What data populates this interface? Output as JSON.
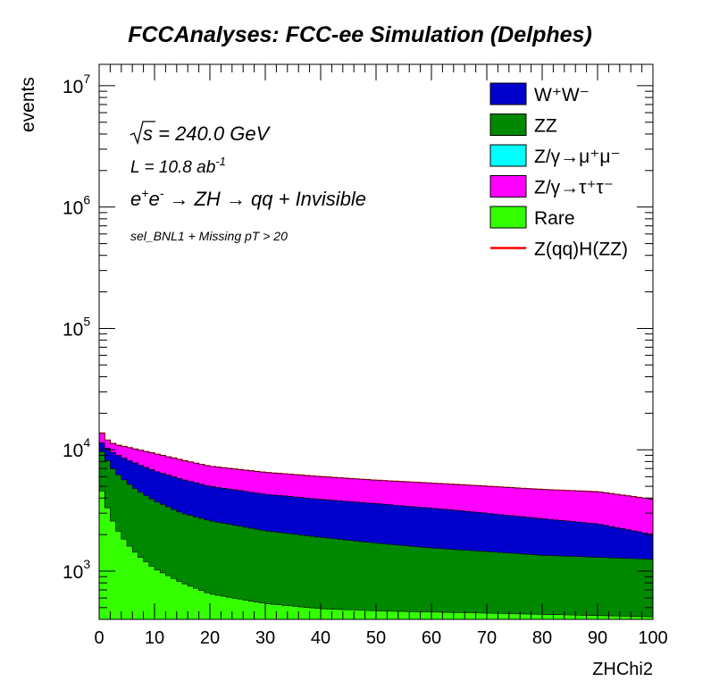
{
  "title": "FCCAnalyses: FCC-ee Simulation (Delphes)",
  "annotations": {
    "sqrt_s": "s = 240.0 GeV",
    "lumi_text": "L = 10.8 ab",
    "lumi_exp": "-1",
    "process": "→ ZH → qq + Invisible",
    "selection": "sel_BNL1 + Missing pT > 20"
  },
  "legend": [
    {
      "label": "W⁺W⁻",
      "color": "#0000cc",
      "kind": "box"
    },
    {
      "label": "ZZ",
      "color": "#008800",
      "kind": "box"
    },
    {
      "label": "Z/γ→μ⁺μ⁻",
      "color": "#00ffff",
      "kind": "box"
    },
    {
      "label": "Z/γ→τ⁺τ⁻",
      "color": "#ff00ff",
      "kind": "box"
    },
    {
      "label": "Rare",
      "color": "#33ff00",
      "kind": "box"
    },
    {
      "label": "Z(qq)H(ZZ)",
      "color": "#ff0000",
      "kind": "line"
    }
  ],
  "chart_data": {
    "type": "area",
    "title": "FCCAnalyses: FCC-ee Simulation (Delphes)",
    "xlabel": "ZHChi2",
    "ylabel": "events",
    "xlim": [
      0,
      100
    ],
    "ylim": [
      400,
      15000000
    ],
    "yscale": "log",
    "stacked": true,
    "x": [
      0,
      1,
      2,
      3,
      5,
      7,
      10,
      15,
      20,
      30,
      40,
      50,
      60,
      70,
      80,
      90,
      100
    ],
    "xticks": [
      0,
      10,
      20,
      30,
      40,
      50,
      60,
      70,
      80,
      90,
      100
    ],
    "yticks": [
      {
        "base": "10",
        "exp": "3",
        "value": 1000
      },
      {
        "base": "10",
        "exp": "4",
        "value": 10000
      },
      {
        "base": "10",
        "exp": "5",
        "value": 100000
      },
      {
        "base": "10",
        "exp": "6",
        "value": 1000000
      },
      {
        "base": "10",
        "exp": "7",
        "value": 10000000
      }
    ],
    "series": [
      {
        "name": "Rare",
        "color": "#33ff00",
        "cumulative": [
          5500,
          3800,
          2900,
          2300,
          1700,
          1350,
          1050,
          800,
          650,
          540,
          490,
          470,
          460,
          450,
          440,
          430,
          420
        ]
      },
      {
        "name": "ZZ",
        "color": "#008800",
        "cumulative": [
          10500,
          8800,
          7500,
          6500,
          5400,
          4600,
          3800,
          3000,
          2600,
          2150,
          1900,
          1700,
          1550,
          1450,
          1350,
          1300,
          1250
        ]
      },
      {
        "name": "W⁺W⁻",
        "color": "#0000cc",
        "cumulative": [
          12000,
          10800,
          9800,
          9200,
          8300,
          7600,
          6700,
          5700,
          5000,
          4300,
          3900,
          3600,
          3300,
          3000,
          2700,
          2450,
          2000
        ]
      },
      {
        "name": "Z/γ→μ⁺μ⁻",
        "color": "#00ffff",
        "cumulative": [
          12000,
          10800,
          9800,
          9200,
          8300,
          7600,
          6700,
          5700,
          5000,
          4300,
          3900,
          3600,
          3300,
          3000,
          2700,
          2450,
          2000
        ]
      },
      {
        "name": "Z/γ→τ⁺τ⁻",
        "color": "#ff00ff",
        "cumulative": [
          15000,
          12500,
          11500,
          11000,
          10500,
          10000,
          9300,
          8200,
          7300,
          6500,
          6000,
          5600,
          5300,
          5000,
          4700,
          4500,
          3900
        ]
      },
      {
        "name": "Z(qq)H(ZZ)",
        "color": "#ff0000",
        "cumulative": [
          15000,
          12500,
          11500,
          11000,
          10500,
          10000,
          9300,
          8200,
          7300,
          6500,
          6000,
          5600,
          5300,
          5000,
          4700,
          4500,
          3900
        ]
      }
    ]
  }
}
